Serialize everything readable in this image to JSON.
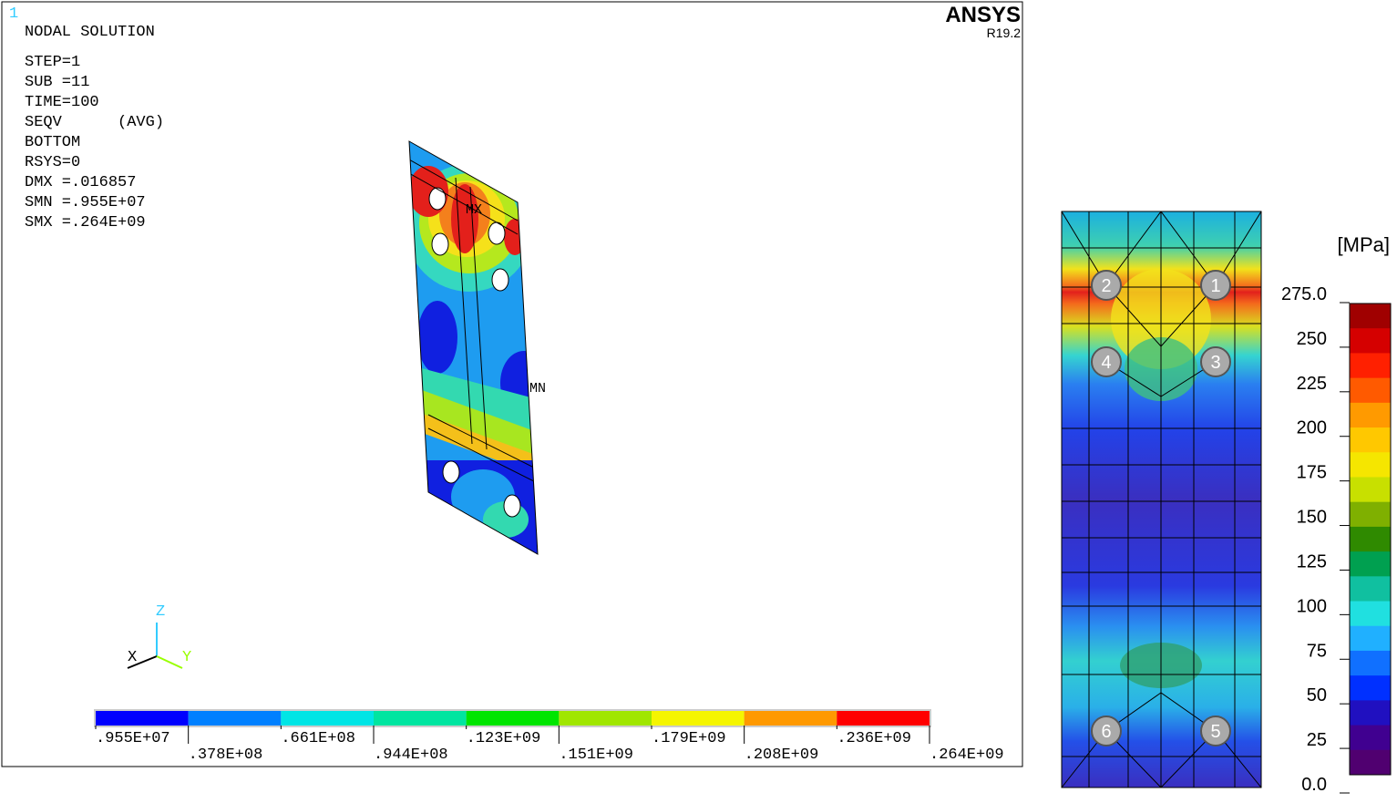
{
  "window_number": "1",
  "info": {
    "title": "NODAL SOLUTION",
    "lines": [
      "STEP=1",
      "SUB =11",
      "TIME=100",
      "SEQV      (AVG)",
      "BOTTOM",
      "RSYS=0",
      "DMX =.016857",
      "SMN =.955E+07",
      "SMX =.264E+09"
    ]
  },
  "brand": {
    "name": "ANSYS",
    "version": "R19.2"
  },
  "markers": {
    "max": "MX",
    "min": "MN"
  },
  "triad": {
    "z": "Z",
    "x": "X",
    "y": "Y"
  },
  "legend": {
    "labels": [
      ".955E+07",
      ".378E+08",
      ".661E+08",
      ".944E+08",
      ".123E+09",
      ".151E+09",
      ".179E+09",
      ".208E+09",
      ".236E+09",
      ".264E+09"
    ]
  },
  "contour": {
    "unit": "[MPa]",
    "scale_labels": [
      "275.0",
      "250",
      "225",
      "200",
      "175",
      "150",
      "125",
      "100",
      "75",
      "50",
      "25",
      "0.0"
    ],
    "nodes": [
      "1",
      "2",
      "3",
      "4",
      "5",
      "6"
    ]
  }
}
